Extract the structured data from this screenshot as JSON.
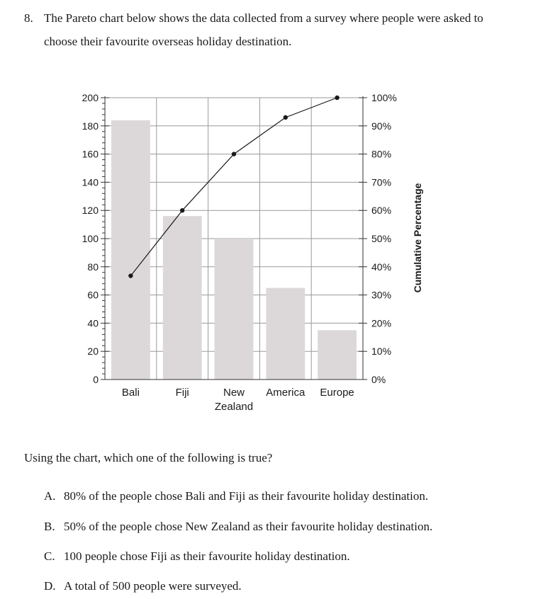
{
  "question": {
    "number": "8.",
    "line1": "The Pareto chart below shows the data collected from a survey where people were asked to",
    "line2": "choose their favourite overseas holiday destination."
  },
  "prompt": "Using the chart, which one of the following is true?",
  "options": [
    {
      "letter": "A.",
      "text": "80% of the people chose Bali and Fiji as their favourite holiday destination."
    },
    {
      "letter": "B.",
      "text": "50% of the people chose New Zealand as their favourite holiday destination."
    },
    {
      "letter": "C.",
      "text": "100 people chose Fiji as their favourite holiday destination."
    },
    {
      "letter": "D.",
      "text": "A total of 500 people were surveyed."
    }
  ],
  "chart_data": {
    "type": "bar",
    "title": "",
    "xlabel": "",
    "ylabel": "",
    "y2label": "Cumulative Percentage",
    "categories": [
      [
        "Bali"
      ],
      [
        "Fiji"
      ],
      [
        "New",
        "Zealand"
      ],
      [
        "America"
      ],
      [
        "Europe"
      ]
    ],
    "series": [
      {
        "type": "bar",
        "values": [
          184,
          116,
          100,
          65,
          35
        ]
      },
      {
        "type": "line",
        "axis": "right",
        "values": [
          36.8,
          60,
          80,
          93,
          100
        ]
      }
    ],
    "ylim": [
      0,
      200
    ],
    "y_ticks": [
      "0",
      "20",
      "40",
      "60",
      "80",
      "100",
      "120",
      "140",
      "160",
      "180",
      "200"
    ],
    "y2lim": [
      0,
      100
    ],
    "y2_ticks": [
      "0%",
      "10%",
      "20%",
      "30%",
      "40%",
      "50%",
      "60%",
      "70%",
      "80%",
      "90%",
      "100%"
    ],
    "grid": true,
    "colors": {
      "bar": "#dcd8d9",
      "grid": "#9a9a9a",
      "line": "#1a1a1a",
      "axis": "#333333"
    }
  }
}
